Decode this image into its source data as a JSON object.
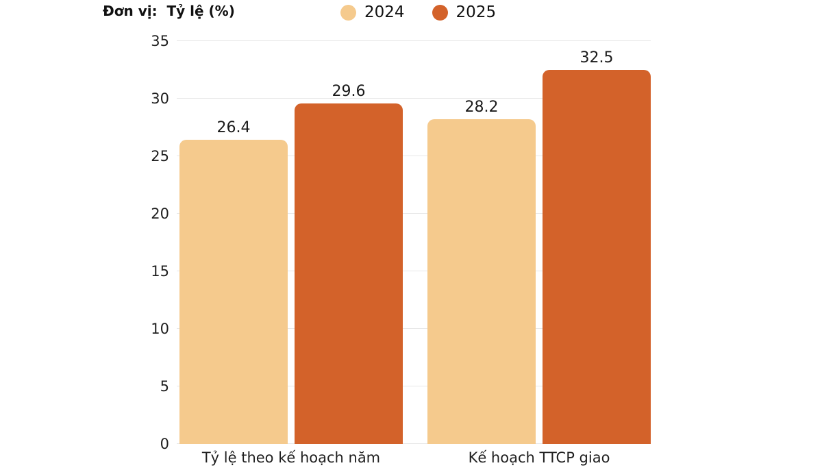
{
  "header": {
    "unit_label": "Đơn vị:  Tỷ lệ (%)"
  },
  "chart_data": {
    "type": "bar",
    "title": "",
    "unit": "Tỷ lệ (%)",
    "categories": [
      "Tỷ lệ theo kế hoạch năm",
      "Kế hoạch TTCP giao"
    ],
    "series": [
      {
        "name": "2024",
        "color": "#F5CA8D",
        "values": [
          26.4,
          28.2
        ]
      },
      {
        "name": "2025",
        "color": "#D3622A",
        "values": [
          29.6,
          32.5
        ]
      }
    ],
    "value_labels": [
      "26.4",
      "29.6",
      "28.2",
      "32.5"
    ],
    "xlabel": "",
    "ylabel": "",
    "ylim": [
      0,
      35
    ],
    "yticks": [
      0,
      5,
      10,
      15,
      20,
      25,
      30,
      35
    ],
    "grid": true,
    "legend_position": "top"
  },
  "colors": {
    "background": "#FFFFFF",
    "gridline": "#E7E7E7",
    "text": "#1F1F1F",
    "series_2024": "#F5CA8D",
    "series_2025": "#D3622A"
  }
}
